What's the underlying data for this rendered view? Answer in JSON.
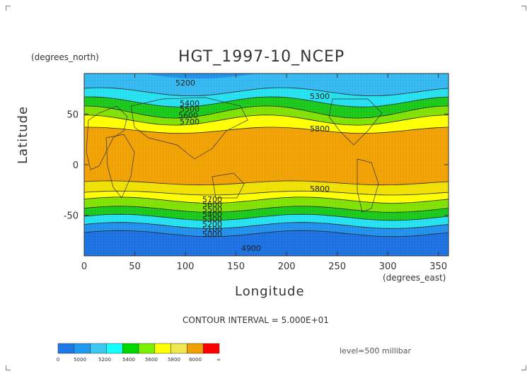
{
  "plot": {
    "title": "HGT_1997-10_NCEP",
    "y_unit": "(degrees_north)",
    "x_unit": "(degrees_east)",
    "x_label": "Longitude",
    "y_label": "Latitude",
    "x_ticks": [
      "0",
      "50",
      "100",
      "150",
      "200",
      "250",
      "300",
      "350"
    ],
    "y_ticks": [
      "50",
      "0",
      "-50"
    ],
    "contour_interval": "CONTOUR INTERVAL = 5.000E+01",
    "level": "level=500 millibar",
    "contour_labels": [
      "5200",
      "5300",
      "5400",
      "5500",
      "5600",
      "5700",
      "5800",
      "5800",
      "5700",
      "5600",
      "5500",
      "5400",
      "5300",
      "5200",
      "5100",
      "5000",
      "4900"
    ]
  },
  "colorbar": {
    "labels": [
      "0",
      "5000",
      "5200",
      "5400",
      "5600",
      "5800",
      "6000",
      "∞"
    ],
    "colors": [
      "#1e78e6",
      "#1e9bf0",
      "#3cc8f0",
      "#14ffff",
      "#00d800",
      "#78f000",
      "#ffff00",
      "#f0e650",
      "#f0a000",
      "#ff0000"
    ]
  },
  "colors": {
    "band_4900": "#1a6fe0",
    "band_5100": "#1f8fec",
    "band_5300": "#33b7f0",
    "band_5400": "#22e0f0",
    "band_5500": "#18c818",
    "band_5600": "#80e000",
    "band_5700": "#ffff00",
    "band_5800": "#f0e000",
    "band_5900": "#f0a000"
  }
}
